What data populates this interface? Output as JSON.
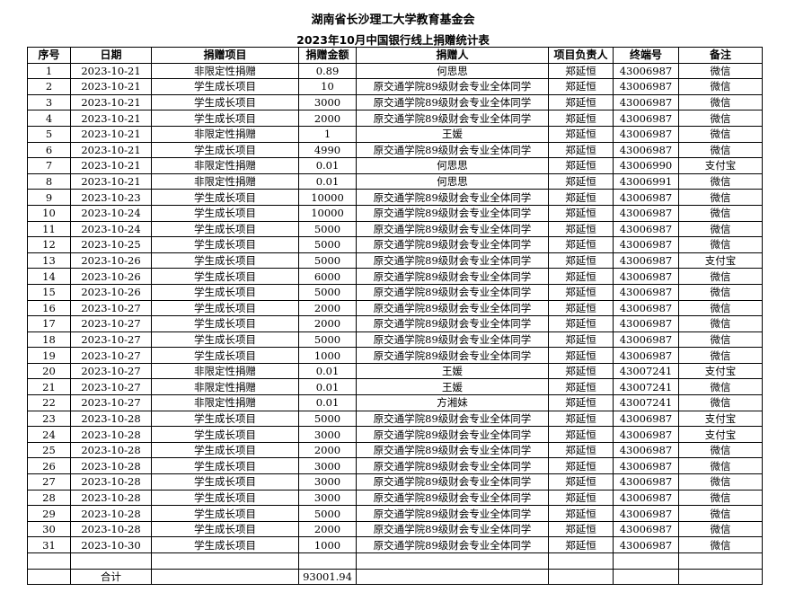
{
  "title": "湖南省长沙理工大学教育基金会",
  "subtitle": "2023年10月中国银行线上捐赠统计表",
  "headers": [
    "序号",
    "日期",
    "捐赠项目",
    "捐赠金额",
    "捐赠人",
    "项目负责人",
    "终端号",
    "备注"
  ],
  "rows": [
    [
      "1",
      "2023-10-21",
      "非限定性捐赠",
      "0.89",
      "何思思",
      "郑延恒",
      "43006987",
      "微信"
    ],
    [
      "2",
      "2023-10-21",
      "学生成长项目",
      "10",
      "原交通学院89级财会专业全体同学",
      "郑延恒",
      "43006987",
      "微信"
    ],
    [
      "3",
      "2023-10-21",
      "学生成长项目",
      "3000",
      "原交通学院89级财会专业全体同学",
      "郑延恒",
      "43006987",
      "微信"
    ],
    [
      "4",
      "2023-10-21",
      "学生成长项目",
      "2000",
      "原交通学院89级财会专业全体同学",
      "郑延恒",
      "43006987",
      "微信"
    ],
    [
      "5",
      "2023-10-21",
      "非限定性捐赠",
      "1",
      "王媛",
      "郑延恒",
      "43006987",
      "微信"
    ],
    [
      "6",
      "2023-10-21",
      "学生成长项目",
      "4990",
      "原交通学院89级财会专业全体同学",
      "郑延恒",
      "43006987",
      "微信"
    ],
    [
      "7",
      "2023-10-21",
      "非限定性捐赠",
      "0.01",
      "何思思",
      "郑延恒",
      "43006990",
      "支付宝"
    ],
    [
      "8",
      "2023-10-21",
      "非限定性捐赠",
      "0.01",
      "何思思",
      "郑延恒",
      "43006991",
      "微信"
    ],
    [
      "9",
      "2023-10-23",
      "学生成长项目",
      "10000",
      "原交通学院89级财会专业全体同学",
      "郑延恒",
      "43006987",
      "微信"
    ],
    [
      "10",
      "2023-10-24",
      "学生成长项目",
      "10000",
      "原交通学院89级财会专业全体同学",
      "郑延恒",
      "43006987",
      "微信"
    ],
    [
      "11",
      "2023-10-24",
      "学生成长项目",
      "5000",
      "原交通学院89级财会专业全体同学",
      "郑延恒",
      "43006987",
      "微信"
    ],
    [
      "12",
      "2023-10-25",
      "学生成长项目",
      "5000",
      "原交通学院89级财会专业全体同学",
      "郑延恒",
      "43006987",
      "微信"
    ],
    [
      "13",
      "2023-10-26",
      "学生成长项目",
      "5000",
      "原交通学院89级财会专业全体同学",
      "郑延恒",
      "43006987",
      "支付宝"
    ],
    [
      "14",
      "2023-10-26",
      "学生成长项目",
      "6000",
      "原交通学院89级财会专业全体同学",
      "郑延恒",
      "43006987",
      "微信"
    ],
    [
      "15",
      "2023-10-26",
      "学生成长项目",
      "5000",
      "原交通学院89级财会专业全体同学",
      "郑延恒",
      "43006987",
      "微信"
    ],
    [
      "16",
      "2023-10-27",
      "学生成长项目",
      "2000",
      "原交通学院89级财会专业全体同学",
      "郑延恒",
      "43006987",
      "微信"
    ],
    [
      "17",
      "2023-10-27",
      "学生成长项目",
      "2000",
      "原交通学院89级财会专业全体同学",
      "郑延恒",
      "43006987",
      "微信"
    ],
    [
      "18",
      "2023-10-27",
      "学生成长项目",
      "5000",
      "原交通学院89级财会专业全体同学",
      "郑延恒",
      "43006987",
      "微信"
    ],
    [
      "19",
      "2023-10-27",
      "学生成长项目",
      "1000",
      "原交通学院89级财会专业全体同学",
      "郑延恒",
      "43006987",
      "微信"
    ],
    [
      "20",
      "2023-10-27",
      "非限定性捐赠",
      "0.01",
      "王媛",
      "郑延恒",
      "43007241",
      "支付宝"
    ],
    [
      "21",
      "2023-10-27",
      "非限定性捐赠",
      "0.01",
      "王媛",
      "郑延恒",
      "43007241",
      "微信"
    ],
    [
      "22",
      "2023-10-27",
      "非限定性捐赠",
      "0.01",
      "方湘妹",
      "郑延恒",
      "43007241",
      "微信"
    ],
    [
      "23",
      "2023-10-28",
      "学生成长项目",
      "5000",
      "原交通学院89级财会专业全体同学",
      "郑延恒",
      "43006987",
      "支付宝"
    ],
    [
      "24",
      "2023-10-28",
      "学生成长项目",
      "3000",
      "原交通学院89级财会专业全体同学",
      "郑延恒",
      "43006987",
      "支付宝"
    ],
    [
      "25",
      "2023-10-28",
      "学生成长项目",
      "2000",
      "原交通学院89级财会专业全体同学",
      "郑延恒",
      "43006987",
      "微信"
    ],
    [
      "26",
      "2023-10-28",
      "学生成长项目",
      "3000",
      "原交通学院89级财会专业全体同学",
      "郑延恒",
      "43006987",
      "微信"
    ],
    [
      "27",
      "2023-10-28",
      "学生成长项目",
      "3000",
      "原交通学院89级财会专业全体同学",
      "郑延恒",
      "43006987",
      "微信"
    ],
    [
      "28",
      "2023-10-28",
      "学生成长项目",
      "3000",
      "原交通学院89级财会专业全体同学",
      "郑延恒",
      "43006987",
      "微信"
    ],
    [
      "29",
      "2023-10-28",
      "学生成长项目",
      "5000",
      "原交通学院89级财会专业全体同学",
      "郑延恒",
      "43006987",
      "微信"
    ],
    [
      "30",
      "2023-10-28",
      "学生成长项目",
      "2000",
      "原交通学院89级财会专业全体同学",
      "郑延恒",
      "43006987",
      "微信"
    ],
    [
      "31",
      "2023-10-30",
      "学生成长项目",
      "1000",
      "原交通学院89级财会专业全体同学",
      "郑延恒",
      "43006987",
      "微信"
    ]
  ],
  "total": {
    "label": "合计",
    "amount": "93001.94"
  }
}
